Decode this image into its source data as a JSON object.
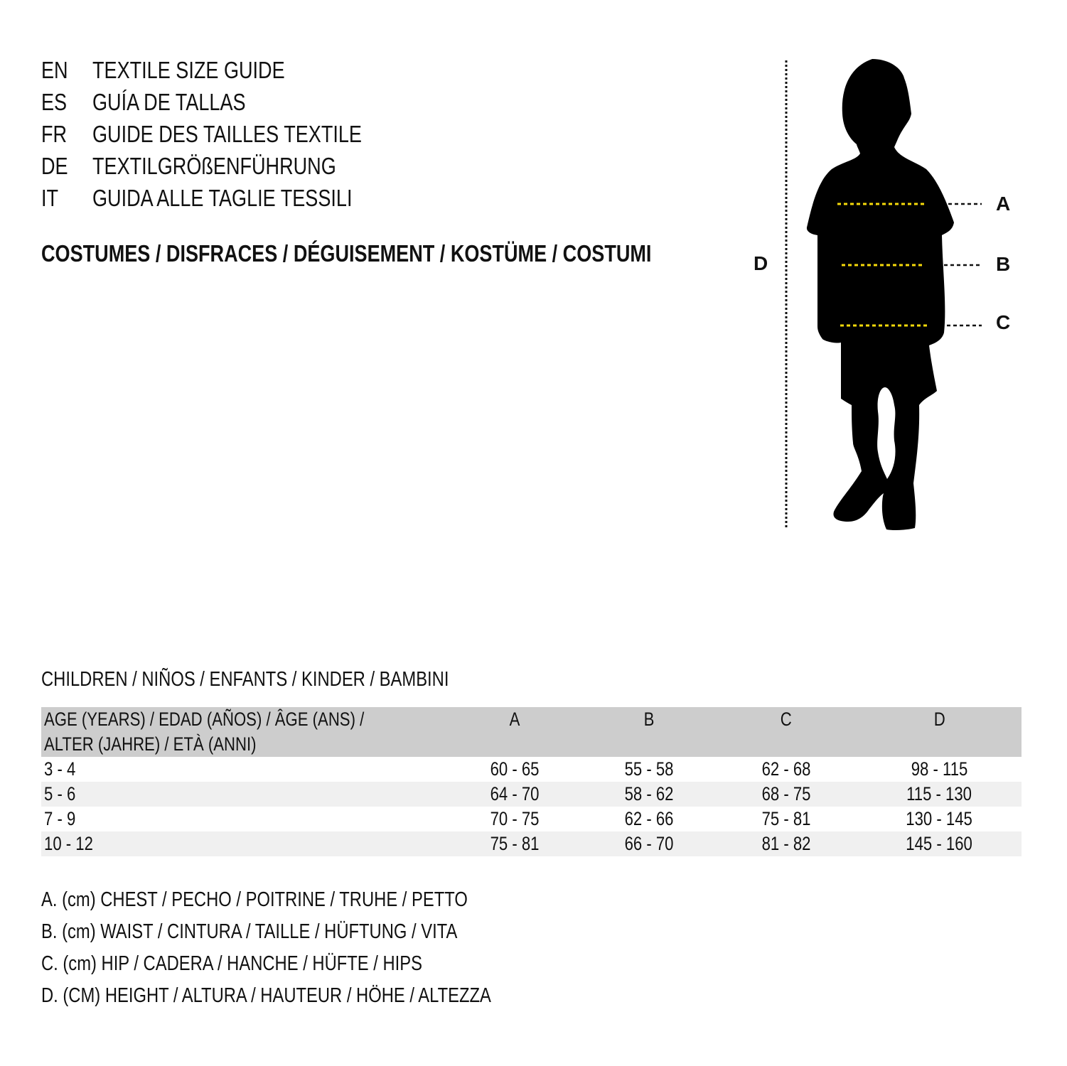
{
  "titles": [
    {
      "code": "EN",
      "text": "TEXTILE SIZE GUIDE"
    },
    {
      "code": "ES",
      "text": "GUÍA DE TALLAS"
    },
    {
      "code": "FR",
      "text": "GUIDE DES TAILLES TEXTILE"
    },
    {
      "code": "DE",
      "text": "TEXTILGRÖßENFÜHRUNG"
    },
    {
      "code": "IT",
      "text": "GUIDA ALLE TAGLIE TESSILI"
    }
  ],
  "category": "COSTUMES / DISFRACES / DÉGUISEMENT / KOSTÜME / COSTUMI",
  "figure": {
    "labels": {
      "a": "A",
      "b": "B",
      "c": "C",
      "d": "D"
    },
    "silhouette": "child-silhouette",
    "measure_line_color": "#f5d90a"
  },
  "table": {
    "caption": "CHILDREN / NIÑOS / ENFANTS / KINDER / BAMBINI",
    "header_line1": "AGE (YEARS) / EDAD (AÑOS) / ÂGE (ANS) /",
    "header_line2": "ALTER (JAHRE) / ETÀ (ANNI)",
    "columns": [
      "A",
      "B",
      "C",
      "D"
    ],
    "rows": [
      {
        "age": "3 - 4",
        "values": [
          "60 - 65",
          "55 - 58",
          "62 - 68",
          "98 - 115"
        ]
      },
      {
        "age": "5 - 6",
        "values": [
          "64 - 70",
          "58 - 62",
          "68 - 75",
          "115 - 130"
        ]
      },
      {
        "age": "7 - 9",
        "values": [
          "70 - 75",
          "62 - 66",
          "75 - 81",
          "130 - 145"
        ]
      },
      {
        "age": "10 - 12",
        "values": [
          "75 - 81",
          "66 - 70",
          "81 - 82",
          "145 - 160"
        ]
      }
    ],
    "header_bg": "#cdcdcd",
    "alt_row_bg": "#f0f0f0"
  },
  "legend": [
    "A. (cm) CHEST / PECHO / POITRINE / TRUHE / PETTO",
    "B. (cm) WAIST / CINTURA / TAILLE / HÜFTUNG / VITA",
    "C. (cm) HIP / CADERA / HANCHE / HÜFTE / HIPS",
    "D. (CM) HEIGHT / ALTURA / HAUTEUR / HÖHE / ALTEZZA"
  ]
}
